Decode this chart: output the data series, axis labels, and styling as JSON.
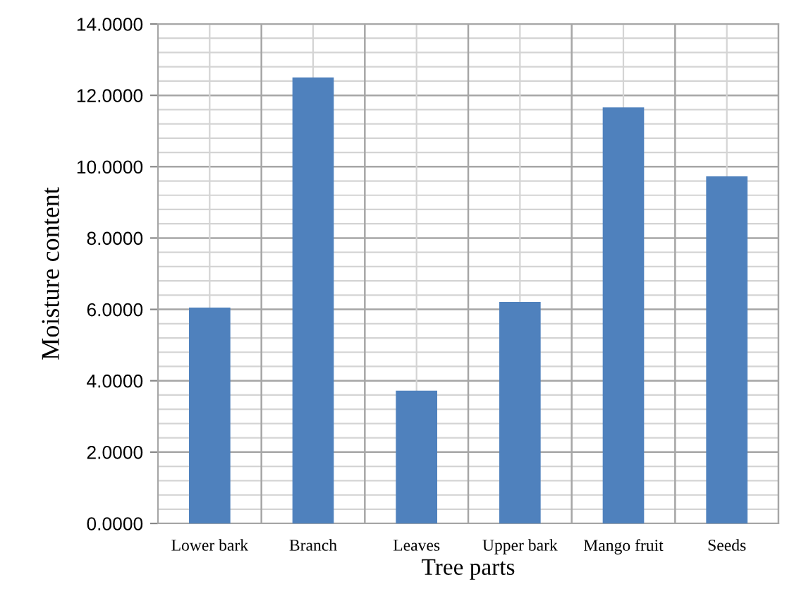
{
  "chart_data": {
    "type": "bar",
    "xlabel": "Tree parts",
    "ylabel": "Moisture content",
    "categories": [
      "Lower bark",
      "Branch",
      "Leaves",
      "Upper bark",
      "Mango fruit",
      "Seeds"
    ],
    "values": [
      6.05,
      12.5,
      3.72,
      6.21,
      11.66,
      9.73
    ],
    "color": "#4f81bd",
    "ylim": [
      0,
      14
    ],
    "yticks": [
      {
        "value": 0,
        "label": "0.0000"
      },
      {
        "value": 2,
        "label": "2.0000"
      },
      {
        "value": 4,
        "label": "4.0000"
      },
      {
        "value": 6,
        "label": "6.0000"
      },
      {
        "value": 8,
        "label": "8.0000"
      },
      {
        "value": 10,
        "label": "10.0000"
      },
      {
        "value": 12,
        "label": "12.0000"
      },
      {
        "value": 14,
        "label": "14.0000"
      }
    ],
    "grid": true
  }
}
